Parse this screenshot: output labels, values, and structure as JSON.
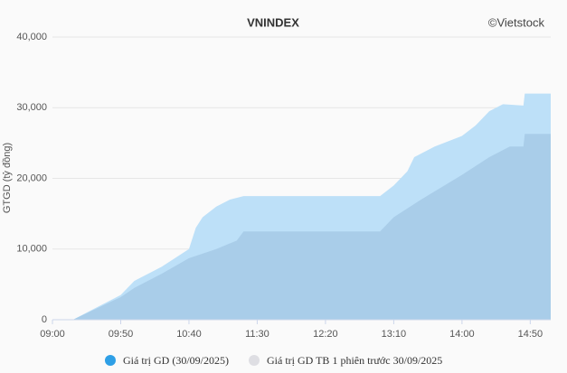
{
  "chart_data": {
    "type": "area",
    "title": "VNINDEX",
    "credit": "©Vietstock",
    "y_label": "GTGD (tỷ đồng)",
    "xlim": [
      "09:00",
      "15:05"
    ],
    "xticks": [
      "09:00",
      "09:50",
      "10:40",
      "11:30",
      "12:20",
      "13:10",
      "14:00",
      "14:50"
    ],
    "ylim": [
      0,
      40000
    ],
    "yticks": [
      0,
      {
        "value": 10000,
        "label": "10,000"
      },
      {
        "value": 20000,
        "label": "20,000"
      },
      {
        "value": 30000,
        "label": "30,000"
      },
      {
        "value": 40000,
        "label": "40,000"
      }
    ],
    "grid": true,
    "series": [
      {
        "name": "Giá trị GD (30/09/2025)",
        "color": "#bde0f8",
        "legend_color": "#2e9fe6",
        "x": [
          "09:15",
          "09:30",
          "09:50",
          "10:00",
          "10:20",
          "10:40",
          "10:45",
          "10:50",
          "11:00",
          "11:10",
          "11:20",
          "11:30",
          "13:00",
          "13:10",
          "13:20",
          "13:25",
          "13:40",
          "14:00",
          "14:10",
          "14:20",
          "14:30",
          "14:45",
          "14:46",
          "15:05"
        ],
        "values": [
          0,
          1500,
          3500,
          5500,
          7500,
          10000,
          13000,
          14500,
          16000,
          17000,
          17500,
          17500,
          17500,
          19000,
          21000,
          23000,
          24500,
          26000,
          27500,
          29500,
          30500,
          30300,
          32000,
          32000
        ]
      },
      {
        "name": "Giá trị GD TB 1 phiên trước 30/09/2025",
        "color": "#a9cde9",
        "legend_color": "#dedee3",
        "x": [
          "09:15",
          "09:50",
          "10:00",
          "10:20",
          "10:40",
          "11:00",
          "11:15",
          "11:20",
          "11:30",
          "13:00",
          "13:10",
          "13:30",
          "14:00",
          "14:20",
          "14:35",
          "14:45",
          "14:46",
          "15:05"
        ],
        "values": [
          0,
          3200,
          4500,
          6500,
          8700,
          10000,
          11200,
          12500,
          12500,
          12500,
          14500,
          17000,
          20500,
          23000,
          24500,
          24500,
          26300,
          26300
        ]
      }
    ]
  }
}
